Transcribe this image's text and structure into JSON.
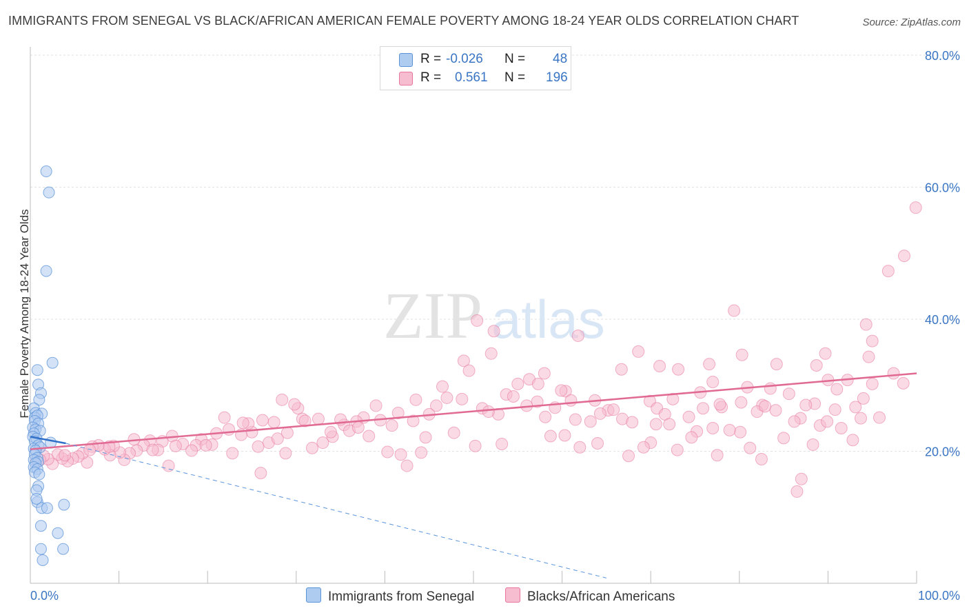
{
  "header": {
    "title": "IMMIGRANTS FROM SENEGAL VS BLACK/AFRICAN AMERICAN FEMALE POVERTY AMONG 18-24 YEAR OLDS CORRELATION CHART",
    "source": "Source: ZipAtlas.com"
  },
  "watermark": {
    "part1": "ZIP",
    "part2": "atlas"
  },
  "legend": {
    "rows": [
      {
        "r_label": "R =",
        "r_value": "-0.026",
        "n_label": "N =",
        "n_value": "48"
      },
      {
        "r_label": "R =",
        "r_value": "0.561",
        "n_label": "N =",
        "n_value": "196"
      }
    ]
  },
  "chart_data": {
    "type": "scatter",
    "title": "IMMIGRANTS FROM SENEGAL VS BLACK/AFRICAN AMERICAN FEMALE POVERTY AMONG 18-24 YEAR OLDS CORRELATION CHART",
    "xlabel": "",
    "ylabel": "Female Poverty Among 18-24 Year Olds",
    "xlim": [
      0,
      100
    ],
    "ylim": [
      0,
      80
    ],
    "x_tick_labels": [
      "0.0%",
      "100.0%"
    ],
    "y_tick_labels": [
      "20.0%",
      "40.0%",
      "60.0%",
      "80.0%"
    ],
    "y_ticks": [
      20,
      40,
      60,
      80
    ],
    "grid": true,
    "legend_position": "top-center",
    "colors": {
      "senegal": "#5b93d8",
      "black": "#e8759c",
      "senegal_fill": "#aecbf0",
      "black_fill": "#f6bcd0"
    },
    "series": [
      {
        "name": "Immigrants from Senegal",
        "r": -0.026,
        "n": 48,
        "trend_solid": [
          [
            0,
            22.2
          ],
          [
            4,
            21.2
          ]
        ],
        "trend_dashed": [
          [
            4,
            21.2
          ],
          [
            65,
            0.8
          ]
        ],
        "points": [
          [
            1.8,
            62.4
          ],
          [
            2.1,
            59.2
          ],
          [
            1.8,
            47.3
          ],
          [
            2.5,
            33.4
          ],
          [
            0.8,
            32.3
          ],
          [
            0.9,
            30.1
          ],
          [
            1.2,
            28.8
          ],
          [
            1.0,
            27.8
          ],
          [
            0.4,
            26.5
          ],
          [
            0.6,
            25.8
          ],
          [
            1.3,
            25.7
          ],
          [
            0.5,
            25.1
          ],
          [
            0.8,
            25.4
          ],
          [
            0.5,
            24.6
          ],
          [
            0.9,
            24.2
          ],
          [
            0.3,
            23.6
          ],
          [
            0.6,
            23.3
          ],
          [
            1.1,
            23.1
          ],
          [
            0.4,
            22.7
          ],
          [
            0.3,
            22.2
          ],
          [
            0.7,
            21.9
          ],
          [
            0.5,
            21.5
          ],
          [
            2.3,
            21.3
          ],
          [
            0.9,
            20.9
          ],
          [
            0.4,
            20.4
          ],
          [
            1.1,
            20.6
          ],
          [
            0.6,
            20.1
          ],
          [
            0.5,
            19.5
          ],
          [
            0.8,
            19.0
          ],
          [
            0.4,
            18.7
          ],
          [
            0.9,
            18.4
          ],
          [
            0.6,
            18.2
          ],
          [
            0.4,
            17.6
          ],
          [
            0.8,
            17.3
          ],
          [
            0.5,
            16.8
          ],
          [
            1.0,
            16.5
          ],
          [
            0.9,
            14.7
          ],
          [
            0.7,
            14.1
          ],
          [
            0.8,
            12.3
          ],
          [
            1.3,
            11.4
          ],
          [
            1.9,
            11.4
          ],
          [
            3.8,
            11.9
          ],
          [
            1.2,
            8.7
          ],
          [
            3.1,
            7.6
          ],
          [
            1.2,
            5.2
          ],
          [
            3.7,
            5.2
          ],
          [
            1.4,
            3.5
          ],
          [
            0.7,
            12.8
          ]
        ]
      },
      {
        "name": "Blacks/African Americans",
        "r": 0.561,
        "n": 196,
        "trend": [
          [
            0,
            20.3
          ],
          [
            100,
            31.8
          ]
        ],
        "points": [
          [
            99.9,
            56.9
          ],
          [
            98.6,
            49.6
          ],
          [
            96.8,
            47.3
          ],
          [
            79.4,
            41.3
          ],
          [
            94.3,
            39.2
          ],
          [
            95.0,
            36.7
          ],
          [
            50.4,
            39.8
          ],
          [
            52.3,
            38.2
          ],
          [
            61.8,
            37.5
          ],
          [
            68.6,
            35.1
          ],
          [
            89.7,
            34.8
          ],
          [
            80.3,
            34.6
          ],
          [
            94.6,
            34.3
          ],
          [
            52.0,
            34.8
          ],
          [
            48.9,
            33.7
          ],
          [
            84.2,
            33.2
          ],
          [
            76.6,
            33.2
          ],
          [
            88.7,
            33.0
          ],
          [
            71.0,
            32.9
          ],
          [
            73.1,
            32.4
          ],
          [
            66.7,
            32.4
          ],
          [
            95.0,
            30.2
          ],
          [
            98.5,
            30.3
          ],
          [
            90.0,
            30.8
          ],
          [
            56.3,
            30.9
          ],
          [
            57.3,
            30.2
          ],
          [
            77.0,
            30.5
          ],
          [
            80.9,
            29.7
          ],
          [
            83.5,
            29.5
          ],
          [
            85.6,
            28.7
          ],
          [
            60.4,
            29.1
          ],
          [
            75.6,
            28.9
          ],
          [
            72.5,
            27.9
          ],
          [
            69.9,
            27.6
          ],
          [
            88.5,
            27.2
          ],
          [
            80.2,
            27.4
          ],
          [
            82.6,
            27.0
          ],
          [
            78.0,
            26.7
          ],
          [
            70.7,
            26.5
          ],
          [
            65.2,
            26.2
          ],
          [
            66.8,
            24.9
          ],
          [
            63.2,
            24.5
          ],
          [
            61.0,
            27.7
          ],
          [
            59.2,
            26.6
          ],
          [
            64.3,
            25.7
          ],
          [
            71.6,
            25.6
          ],
          [
            74.3,
            25.2
          ],
          [
            86.9,
            25.0
          ],
          [
            89.1,
            23.9
          ],
          [
            91.5,
            23.5
          ],
          [
            92.8,
            21.7
          ],
          [
            90.8,
            26.3
          ],
          [
            93.7,
            25.0
          ],
          [
            88.3,
            21.0
          ],
          [
            85.0,
            22.0
          ],
          [
            82.0,
            26.0
          ],
          [
            80.1,
            22.9
          ],
          [
            77.0,
            23.5
          ],
          [
            75.2,
            23.0
          ],
          [
            73.0,
            20.2
          ],
          [
            70.0,
            21.3
          ],
          [
            67.5,
            19.3
          ],
          [
            64.0,
            21.2
          ],
          [
            62.0,
            20.6
          ],
          [
            60.3,
            22.4
          ],
          [
            58.1,
            25.2
          ],
          [
            57.2,
            27.5
          ],
          [
            55.0,
            30.2
          ],
          [
            53.7,
            28.6
          ],
          [
            51.0,
            26.5
          ],
          [
            48.7,
            27.9
          ],
          [
            47.0,
            28.1
          ],
          [
            45.8,
            26.9
          ],
          [
            44.6,
            22.1
          ],
          [
            43.2,
            24.6
          ],
          [
            41.5,
            25.8
          ],
          [
            39.0,
            26.9
          ],
          [
            37.6,
            25.1
          ],
          [
            36.8,
            24.5
          ],
          [
            35.4,
            24.0
          ],
          [
            34.1,
            22.2
          ],
          [
            33.0,
            21.3
          ],
          [
            31.8,
            20.5
          ],
          [
            30.2,
            26.5
          ],
          [
            29.8,
            27.1
          ],
          [
            28.4,
            27.8
          ],
          [
            27.5,
            24.4
          ],
          [
            26.2,
            24.7
          ],
          [
            25.0,
            22.9
          ],
          [
            24.6,
            24.2
          ],
          [
            23.8,
            22.5
          ],
          [
            22.4,
            23.3
          ],
          [
            21.0,
            22.7
          ],
          [
            20.5,
            21.0
          ],
          [
            19.3,
            21.8
          ],
          [
            18.7,
            20.9
          ],
          [
            17.2,
            21.1
          ],
          [
            16.0,
            22.3
          ],
          [
            14.9,
            21.5
          ],
          [
            14.4,
            20.2
          ],
          [
            13.5,
            21.6
          ],
          [
            12.8,
            20.9
          ],
          [
            12.0,
            20.1
          ],
          [
            11.2,
            19.7
          ],
          [
            10.6,
            18.7
          ],
          [
            10.1,
            19.8
          ],
          [
            9.4,
            20.8
          ],
          [
            9.0,
            19.4
          ],
          [
            8.4,
            20.3
          ],
          [
            7.7,
            20.9
          ],
          [
            7.0,
            20.7
          ],
          [
            6.4,
            18.3
          ],
          [
            5.9,
            19.7
          ],
          [
            5.4,
            19.2
          ],
          [
            4.8,
            18.9
          ],
          [
            4.2,
            18.5
          ],
          [
            3.6,
            18.9
          ],
          [
            3.1,
            19.5
          ],
          [
            2.5,
            18.1
          ],
          [
            2.0,
            18.8
          ],
          [
            1.5,
            19.3
          ],
          [
            1.1,
            18.7
          ],
          [
            0.8,
            18.4
          ],
          [
            3.9,
            19.4
          ],
          [
            6.7,
            20.2
          ],
          [
            8.9,
            20.7
          ],
          [
            11.7,
            21.8
          ],
          [
            13.8,
            20.2
          ],
          [
            15.6,
            17.8
          ],
          [
            19.8,
            20.9
          ],
          [
            21.9,
            25.1
          ],
          [
            24.0,
            24.3
          ],
          [
            26.9,
            21.3
          ],
          [
            28.8,
            19.7
          ],
          [
            30.7,
            24.9
          ],
          [
            32.5,
            24.9
          ],
          [
            33.9,
            22.9
          ],
          [
            36.0,
            23.1
          ],
          [
            38.2,
            22.3
          ],
          [
            39.5,
            24.7
          ],
          [
            40.3,
            19.9
          ],
          [
            41.8,
            19.5
          ],
          [
            42.5,
            17.8
          ],
          [
            44.1,
            19.8
          ],
          [
            46.5,
            29.8
          ],
          [
            47.8,
            22.8
          ],
          [
            50.2,
            20.8
          ],
          [
            52.8,
            25.6
          ],
          [
            54.5,
            28.3
          ],
          [
            56.0,
            26.9
          ],
          [
            58.7,
            22.3
          ],
          [
            59.9,
            29.2
          ],
          [
            61.5,
            24.8
          ],
          [
            63.7,
            27.7
          ],
          [
            65.8,
            26.3
          ],
          [
            67.9,
            24.4
          ],
          [
            69.2,
            20.6
          ],
          [
            70.6,
            24.1
          ],
          [
            72.1,
            24.1
          ],
          [
            74.6,
            22.1
          ],
          [
            75.9,
            26.5
          ],
          [
            77.8,
            27.1
          ],
          [
            78.9,
            23.2
          ],
          [
            81.2,
            20.5
          ],
          [
            82.9,
            26.8
          ],
          [
            84.1,
            26.2
          ],
          [
            86.2,
            24.5
          ],
          [
            87.5,
            27.0
          ],
          [
            89.9,
            24.5
          ],
          [
            91.0,
            29.4
          ],
          [
            92.2,
            30.8
          ],
          [
            93.1,
            26.7
          ],
          [
            94.0,
            28.0
          ],
          [
            95.8,
            25.1
          ],
          [
            97.4,
            31.8
          ],
          [
            18.2,
            20.1
          ],
          [
            16.4,
            20.8
          ],
          [
            22.8,
            19.7
          ],
          [
            25.7,
            20.7
          ],
          [
            27.9,
            21.9
          ],
          [
            29.0,
            22.8
          ],
          [
            31.0,
            24.6
          ],
          [
            35.0,
            24.8
          ],
          [
            37.0,
            23.6
          ],
          [
            40.8,
            23.9
          ],
          [
            43.5,
            27.8
          ],
          [
            45.0,
            25.6
          ],
          [
            49.5,
            32.2
          ],
          [
            51.7,
            26.0
          ],
          [
            53.2,
            21.1
          ],
          [
            58.0,
            31.8
          ],
          [
            87.0,
            15.8
          ],
          [
            86.5,
            13.9
          ],
          [
            82.5,
            18.8
          ],
          [
            77.5,
            19.4
          ],
          [
            26.0,
            16.7
          ]
        ]
      }
    ]
  },
  "axes": {
    "x_min_label": "0.0%",
    "x_max_label": "100.0%",
    "y_label": "Female Poverty Among 18-24 Year Olds"
  },
  "bottom_legend": {
    "senegal_label": "Immigrants from Senegal",
    "black_label": "Blacks/African Americans"
  }
}
